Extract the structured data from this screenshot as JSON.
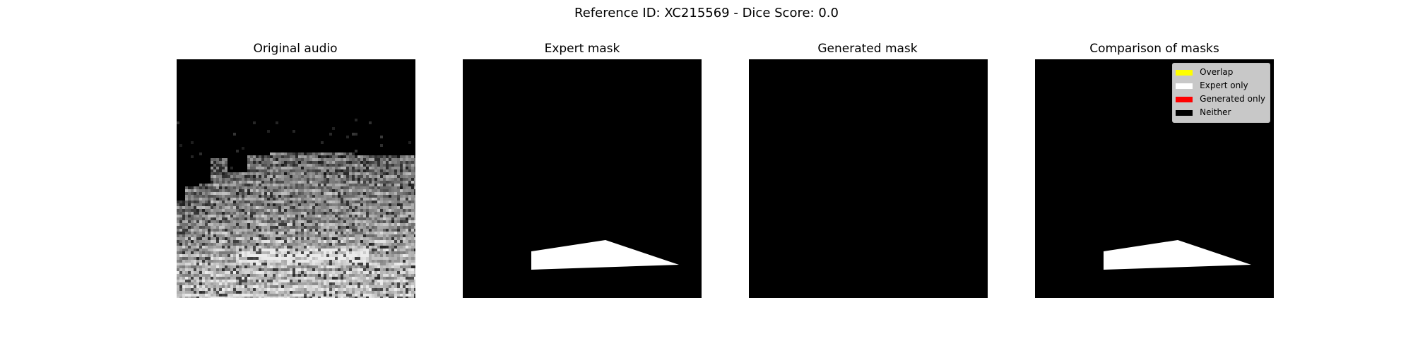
{
  "figure": {
    "suptitle": "Reference ID: XC215569 - Dice Score: 0.0"
  },
  "panels": [
    {
      "title": "Original audio"
    },
    {
      "title": "Expert mask"
    },
    {
      "title": "Generated mask"
    },
    {
      "title": "Comparison of masks"
    }
  ],
  "legend": {
    "items": [
      {
        "label": "Overlap",
        "color": "#ffff00"
      },
      {
        "label": "Expert only",
        "color": "#ffffff"
      },
      {
        "label": "Generated only",
        "color": "#ff0000"
      },
      {
        "label": "Neither",
        "color": "#000000"
      }
    ]
  },
  "colors": {
    "mask_fill": "#ffffff",
    "background": "#000000"
  }
}
